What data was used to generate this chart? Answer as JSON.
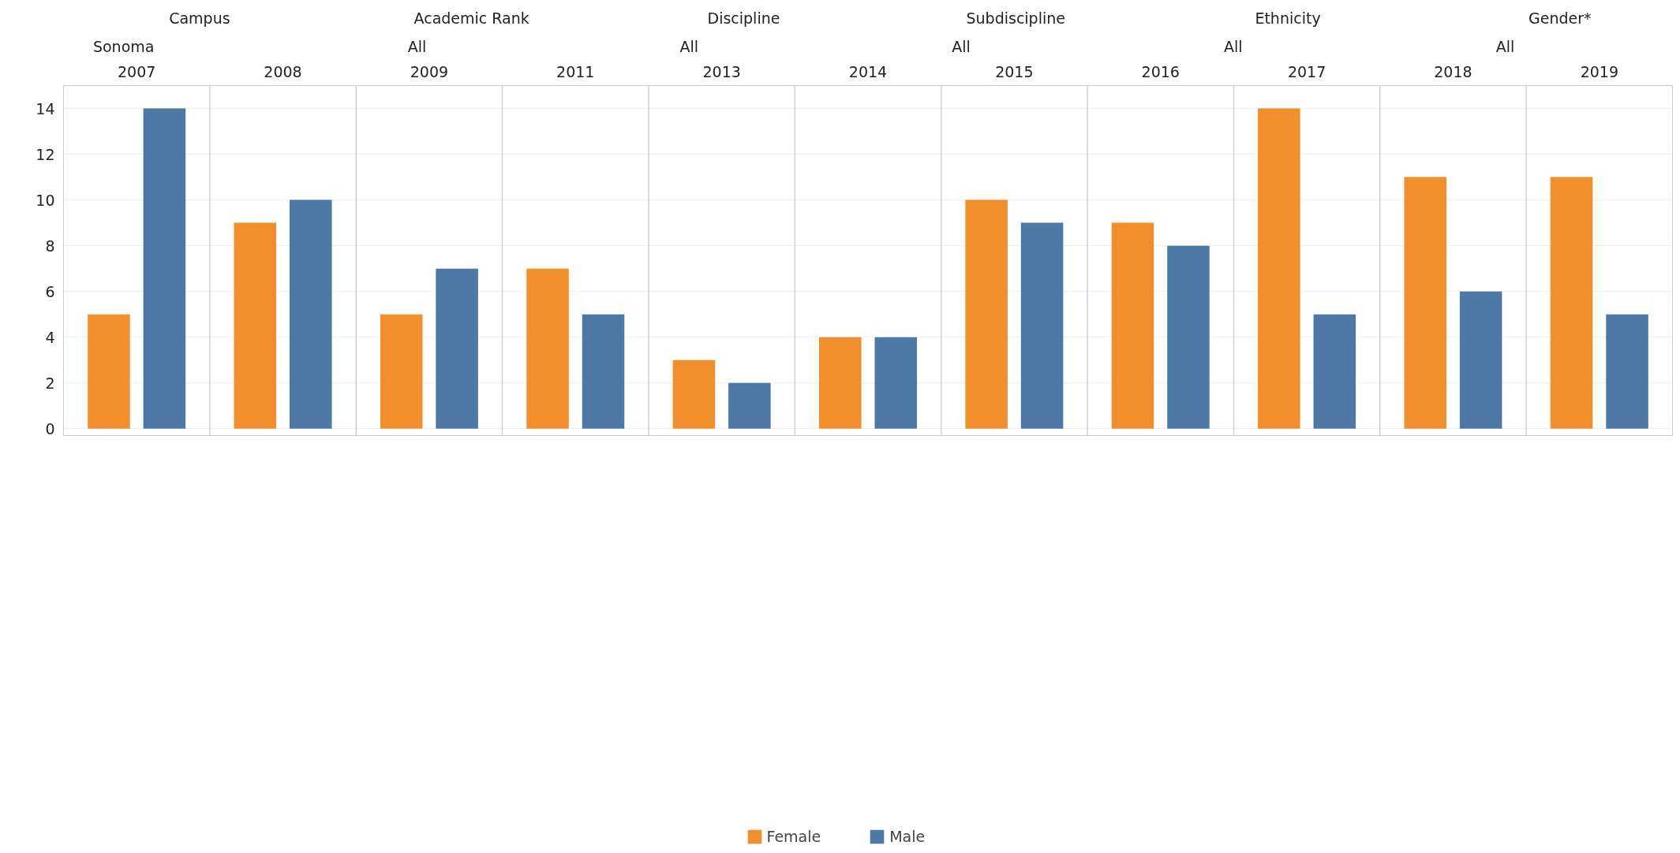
{
  "chart_data": {
    "type": "bar",
    "categories": [
      "2007",
      "2008",
      "2009",
      "2011",
      "2013",
      "2014",
      "2015",
      "2016",
      "2017",
      "2018",
      "2019"
    ],
    "series": [
      {
        "name": "Female",
        "color": "#f28e2b",
        "values": [
          5,
          9,
          5,
          7,
          3,
          4,
          10,
          9,
          14,
          11,
          11
        ]
      },
      {
        "name": "Male",
        "color": "#4e79a7",
        "values": [
          14,
          10,
          7,
          5,
          2,
          4,
          9,
          8,
          5,
          6,
          5
        ]
      }
    ],
    "ylim": [
      -0.3,
      15
    ],
    "yticks": [
      0,
      2,
      4,
      6,
      8,
      10,
      12,
      14
    ],
    "grid": "y",
    "legend": "bottom",
    "annotations": [
      "Campus",
      "Sonoma",
      "Academic Rank",
      "All",
      "Discipline",
      "All",
      "Subdiscipline",
      "All",
      "Ethnicity",
      "All",
      "Gender*",
      "All"
    ]
  }
}
